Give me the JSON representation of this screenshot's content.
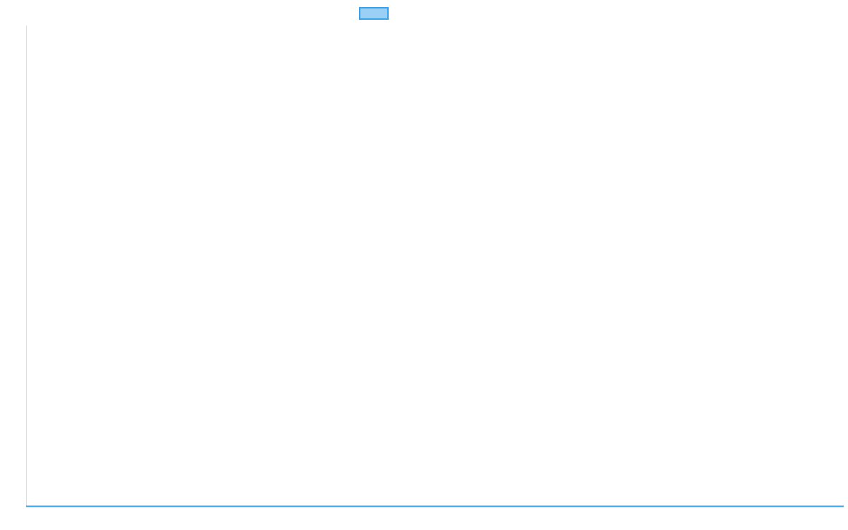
{
  "chart_data": {
    "type": "line",
    "title": "",
    "xlabel": "",
    "ylabel": "",
    "categories": [],
    "series": [
      {
        "values": []
      }
    ],
    "grid": false,
    "legend_position": "top",
    "colors": {
      "series_border": "#36a2eb",
      "series_fill": "#9ad0f5",
      "axis": "#e0e0e0"
    }
  }
}
